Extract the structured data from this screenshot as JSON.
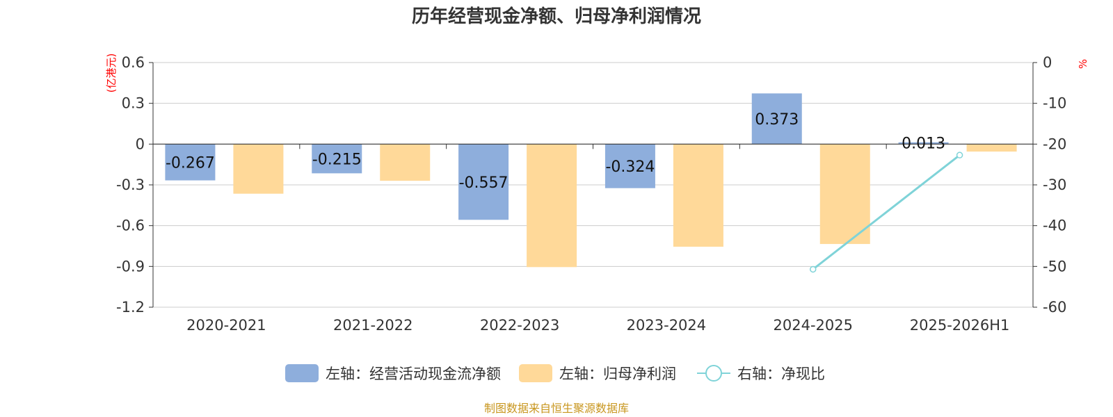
{
  "chart_data": {
    "type": "bar",
    "title": "历年经营现金净额、归母净利润情况",
    "categories": [
      "2020-2021",
      "2021-2022",
      "2022-2023",
      "2023-2024",
      "2024-2025",
      "2025-2026H1"
    ],
    "left_axis": {
      "unit": "(亿港元)",
      "ylim": [
        -1.2,
        0.6
      ],
      "ticks": [
        "0.6",
        "0.3",
        "0",
        "-0.3",
        "-0.6",
        "-0.9",
        "-1.2"
      ]
    },
    "right_axis": {
      "unit": "%",
      "ylim": [
        -60,
        0
      ],
      "ticks": [
        "0",
        "-10",
        "-20",
        "-30",
        "-40",
        "-50",
        "-60"
      ]
    },
    "series": [
      {
        "name": "左轴：经营活动现金流净额",
        "type": "bar",
        "axis": "left",
        "color": "#8eaedc",
        "values": [
          -0.267,
          -0.215,
          -0.557,
          -0.324,
          0.373,
          0.013
        ],
        "labels": [
          "-0.267",
          "-0.215",
          "-0.557",
          "-0.324",
          "0.373",
          "0.013"
        ]
      },
      {
        "name": "左轴：归母净利润",
        "type": "bar",
        "axis": "left",
        "color": "#ffd999",
        "values": [
          -0.365,
          -0.27,
          -0.905,
          -0.755,
          -0.735,
          -0.055
        ]
      },
      {
        "name": "右轴：净现比",
        "type": "line",
        "axis": "right",
        "color": "#7fd3d8",
        "values": [
          null,
          null,
          null,
          null,
          -50.7,
          -22.7
        ]
      }
    ],
    "grid": true,
    "legend": "bottom"
  },
  "source": "制图数据来自恒生聚源数据库"
}
